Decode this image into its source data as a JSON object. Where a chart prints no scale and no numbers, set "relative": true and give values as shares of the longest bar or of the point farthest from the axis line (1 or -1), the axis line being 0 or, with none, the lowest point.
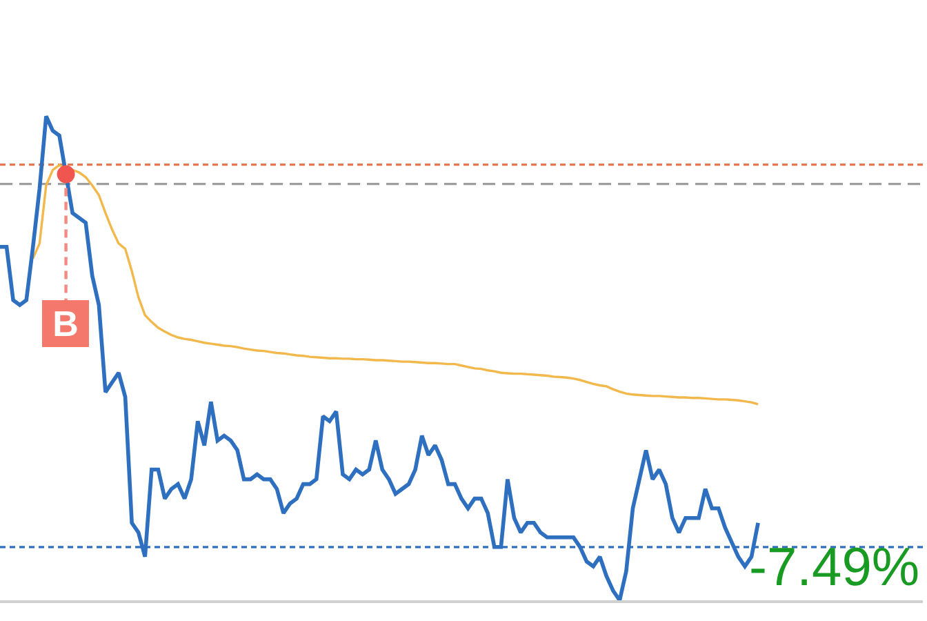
{
  "chart_data": {
    "type": "line",
    "relative": true,
    "categories": [
      null,
      null,
      null,
      null,
      null,
      null,
      null,
      null,
      null,
      null,
      null,
      null,
      null,
      null,
      null,
      null,
      null,
      null,
      null,
      null,
      null,
      null,
      null,
      null,
      null,
      null,
      null,
      null,
      null,
      null,
      null,
      null,
      null,
      null,
      null,
      null,
      null,
      null,
      null,
      null,
      null,
      null,
      null,
      null,
      null,
      null,
      null,
      null,
      null,
      null,
      null,
      null,
      null,
      null,
      null,
      null,
      null,
      null,
      null,
      null,
      null,
      null,
      null,
      null,
      null,
      null,
      null,
      null,
      null,
      null,
      null,
      null,
      null,
      null,
      null,
      null,
      null,
      null,
      null,
      null,
      null,
      null,
      null,
      null,
      null,
      null,
      null,
      null,
      null,
      null,
      null,
      null,
      null,
      null,
      null,
      null,
      null,
      null,
      null,
      null,
      null,
      null,
      null,
      null,
      null,
      null,
      null,
      null,
      null,
      null,
      null,
      null,
      null,
      null,
      null,
      null,
      null,
      null,
      null,
      null,
      null,
      null,
      null,
      null,
      null,
      null,
      null,
      null,
      null,
      null,
      null,
      null,
      null,
      null,
      null,
      null,
      null,
      null,
      null,
      null,
      null
    ],
    "series": [
      {
        "color": "#f2b84b",
        "values": [
          null,
          null,
          null,
          null,
          null,
          0.706,
          0.737,
          0.857,
          0.889,
          0.899,
          0.893,
          0.889,
          0.884,
          0.874,
          0.857,
          0.837,
          0.8,
          0.766,
          0.737,
          0.726,
          0.68,
          0.626,
          0.589,
          0.575,
          0.563,
          0.555,
          0.548,
          0.543,
          0.54,
          0.538,
          0.535,
          0.532,
          0.53,
          0.528,
          0.526,
          0.525,
          0.523,
          0.52,
          0.518,
          0.516,
          0.515,
          0.513,
          0.511,
          0.51,
          0.508,
          0.506,
          0.505,
          0.503,
          0.502,
          0.501,
          0.5,
          0.5,
          0.499,
          0.499,
          0.498,
          0.498,
          0.497,
          0.496,
          0.496,
          0.495,
          0.494,
          0.493,
          0.493,
          0.492,
          0.491,
          0.49,
          0.49,
          0.489,
          0.488,
          0.488,
          0.485,
          0.482,
          0.479,
          0.478,
          0.475,
          0.473,
          0.47,
          0.469,
          0.468,
          0.468,
          0.467,
          0.466,
          0.465,
          0.464,
          0.462,
          0.461,
          0.46,
          0.458,
          0.455,
          0.451,
          0.447,
          0.444,
          0.442,
          0.436,
          0.431,
          0.427,
          0.425,
          0.424,
          0.423,
          0.422,
          0.422,
          0.421,
          0.42,
          0.419,
          0.419,
          0.418,
          0.418,
          0.417,
          0.416,
          0.415,
          0.415,
          0.414,
          0.413,
          0.411,
          0.409,
          0.405,
          null,
          null,
          null,
          null,
          null,
          null,
          null,
          null,
          null,
          null,
          null,
          null,
          null,
          null,
          null,
          null,
          null,
          null,
          null,
          null,
          null,
          null,
          null,
          null,
          null
        ]
      },
      {
        "color": "#2e6fc0",
        "values": [
          0.73,
          0.73,
          0.62,
          0.61,
          0.62,
          0.73,
          0.85,
          1.0,
          0.97,
          0.96,
          0.88,
          0.8,
          0.79,
          0.78,
          0.67,
          0.61,
          0.43,
          0.45,
          0.47,
          0.42,
          0.16,
          0.14,
          0.09,
          0.27,
          0.27,
          0.21,
          0.23,
          0.24,
          0.21,
          0.25,
          0.37,
          0.32,
          0.41,
          0.33,
          0.34,
          0.33,
          0.31,
          0.25,
          0.25,
          0.26,
          0.25,
          0.25,
          0.23,
          0.18,
          0.2,
          0.21,
          0.24,
          0.24,
          0.25,
          0.38,
          0.37,
          0.39,
          0.26,
          0.25,
          0.27,
          0.26,
          0.27,
          0.33,
          0.27,
          0.25,
          0.22,
          0.23,
          0.24,
          0.27,
          0.34,
          0.3,
          0.32,
          0.29,
          0.24,
          0.24,
          0.21,
          0.19,
          0.21,
          0.21,
          0.18,
          0.11,
          0.11,
          0.25,
          0.17,
          0.14,
          0.16,
          0.16,
          0.14,
          0.13,
          0.13,
          0.13,
          0.13,
          0.13,
          0.11,
          0.08,
          0.07,
          0.09,
          0.05,
          0.02,
          0,
          0.06,
          0.19,
          0.25,
          0.31,
          0.25,
          0.27,
          0.24,
          0.17,
          0.14,
          0.17,
          0.17,
          0.17,
          0.23,
          0.19,
          0.19,
          0.15,
          0.12,
          0.09,
          0.07,
          0.09,
          0.16,
          null,
          null,
          null,
          null,
          null,
          null,
          null,
          null,
          null,
          null,
          null,
          null,
          null,
          null,
          null,
          null,
          null,
          null,
          null,
          null,
          null,
          null,
          null,
          null,
          null
        ]
      }
    ],
    "ref_lines": [
      {
        "axis": "y",
        "value": 0.86,
        "color": "#9e9e9e",
        "line_style": "dashed"
      },
      {
        "axis": "y",
        "value": 0.9,
        "color": "#e8774f",
        "line_style": "dotted"
      },
      {
        "axis": "y",
        "value": 0.11,
        "color": "#2e6fc0",
        "line_style": "dotted"
      }
    ],
    "annotations": [
      {
        "text": "B",
        "y": 0.88
      },
      "-7.49%"
    ]
  }
}
